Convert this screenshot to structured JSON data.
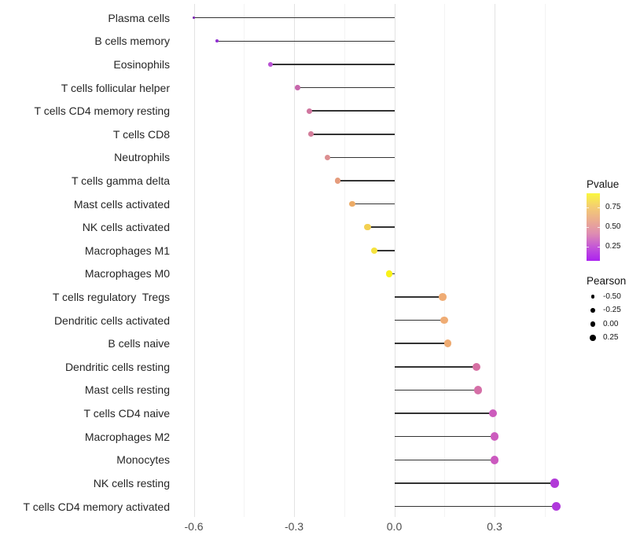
{
  "chart_data": {
    "type": "lollipop",
    "title": "",
    "xlabel": "",
    "ylabel": "",
    "x_range": [
      -0.66,
      0.54
    ],
    "x_ticks": [
      {
        "value": -0.6,
        "label": "-0.6"
      },
      {
        "value": -0.3,
        "label": "-0.3"
      },
      {
        "value": 0.0,
        "label": "0.0"
      },
      {
        "value": 0.3,
        "label": "0.3"
      }
    ],
    "x_minor_ticks": [
      -0.45,
      -0.15,
      0.15,
      0.45
    ],
    "grid": true,
    "points": [
      {
        "label": "Plasma cells",
        "pearson": -0.6,
        "color": "#7D24B4"
      },
      {
        "label": "B cells memory",
        "pearson": -0.53,
        "color": "#9130D2"
      },
      {
        "label": "Eosinophils",
        "pearson": -0.37,
        "color": "#B953D4"
      },
      {
        "label": "T cells follicular helper",
        "pearson": -0.29,
        "color": "#C767AC"
      },
      {
        "label": "T cells CD4 memory resting",
        "pearson": -0.255,
        "color": "#D0769F"
      },
      {
        "label": "T cells CD8",
        "pearson": -0.25,
        "color": "#D37D9A"
      },
      {
        "label": "Neutrophils",
        "pearson": -0.2,
        "color": "#DC8F91"
      },
      {
        "label": "T cells gamma delta",
        "pearson": -0.17,
        "color": "#E59C7D"
      },
      {
        "label": "Mast cells activated",
        "pearson": -0.125,
        "color": "#ECAB66"
      },
      {
        "label": "NK cells activated",
        "pearson": -0.08,
        "color": "#F3D051"
      },
      {
        "label": "Macrophages M1",
        "pearson": -0.06,
        "color": "#F5E23E"
      },
      {
        "label": "Macrophages M0",
        "pearson": -0.015,
        "color": "#F9F218"
      },
      {
        "label": "T cells regulatory  Tregs",
        "pearson": 0.145,
        "color": "#EFAC74"
      },
      {
        "label": "Dendritic cells activated",
        "pearson": 0.15,
        "color": "#EFAC74"
      },
      {
        "label": "B cells naive",
        "pearson": 0.16,
        "color": "#EEAB72"
      },
      {
        "label": "Dendritic cells resting",
        "pearson": 0.245,
        "color": "#D66FA3"
      },
      {
        "label": "Mast cells resting",
        "pearson": 0.25,
        "color": "#D56FA7"
      },
      {
        "label": "T cells CD4 naive",
        "pearson": 0.295,
        "color": "#CC5BBC"
      },
      {
        "label": "Macrophages M2",
        "pearson": 0.3,
        "color": "#CC5CBE"
      },
      {
        "label": "Monocytes",
        "pearson": 0.3,
        "color": "#CB59BF"
      },
      {
        "label": "NK cells resting",
        "pearson": 0.48,
        "color": "#B23AD8"
      },
      {
        "label": "T cells CD4 memory activated",
        "pearson": 0.485,
        "color": "#B038DC"
      }
    ],
    "legends": {
      "pvalue": {
        "title": "Pvalue",
        "tick_labels": [
          "0.75",
          "0.50",
          "0.25"
        ],
        "gradient_bottom_to_top": [
          "#AC22F0",
          "#C355D8",
          "#DE8CB2",
          "#EBAD90",
          "#F4CD72",
          "#FAF73E"
        ]
      },
      "pearson": {
        "title": "Pearson",
        "items": [
          {
            "label": "-0.50",
            "value": -0.5,
            "diameter": 4.3
          },
          {
            "label": "-0.25",
            "value": -0.25,
            "diameter": 5.7
          },
          {
            "label": "0.00",
            "value": 0.0,
            "diameter": 6.9
          },
          {
            "label": "0.25",
            "value": 0.25,
            "diameter": 7.7
          }
        ]
      }
    }
  }
}
